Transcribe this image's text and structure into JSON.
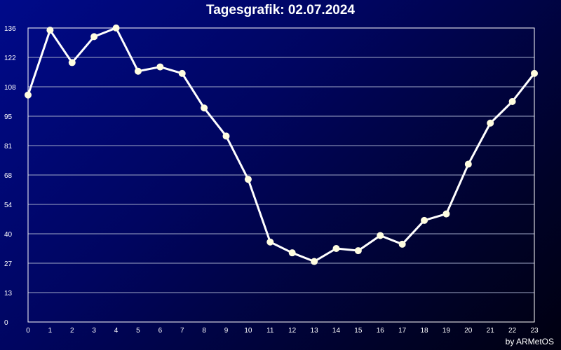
{
  "title": "Tagesgrafik: 02.07.2024",
  "credit": "by ARMetOS",
  "colors": {
    "line": "#ffffff",
    "marker": "#fffde0",
    "grid": "#a0a8c8",
    "frame": "#ffffff"
  },
  "chart_data": {
    "type": "line",
    "title": "Tagesgrafik: 02.07.2024",
    "xlabel": "",
    "ylabel": "",
    "x": [
      0,
      1,
      2,
      3,
      4,
      5,
      6,
      7,
      8,
      9,
      10,
      11,
      12,
      13,
      14,
      15,
      16,
      17,
      18,
      19,
      20,
      21,
      22,
      23
    ],
    "y_ticks": [
      "0",
      "13",
      "27",
      "40",
      "54",
      "68",
      "81",
      "95",
      "108",
      "122",
      "136"
    ],
    "ylim": [
      0,
      136
    ],
    "grid": true,
    "series": [
      {
        "values": [
          105,
          135,
          120,
          132,
          136,
          116,
          118,
          115,
          99,
          86,
          66,
          37,
          32,
          28,
          34,
          33,
          40,
          36,
          47,
          50,
          73,
          92,
          102,
          115
        ]
      }
    ]
  }
}
